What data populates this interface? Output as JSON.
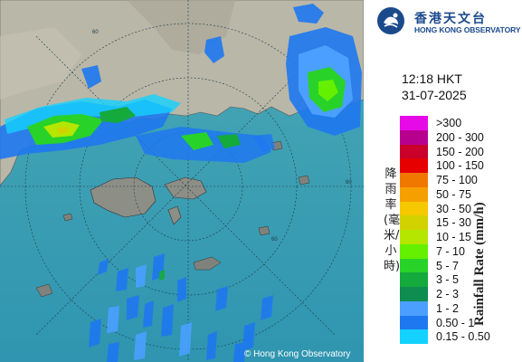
{
  "header": {
    "org_name_zh": "香港天文台",
    "org_name_en": "HONG KONG OBSERVATORY",
    "time": "12:18 HKT",
    "date": "31-07-2025"
  },
  "legend": {
    "title_zh": "降雨率(毫米/小時)",
    "title_en": "Rainfall Rate (mm/h)",
    "items": [
      {
        "label": ">300",
        "color": "#e60ae6"
      },
      {
        "label": "200 - 300",
        "color": "#b8008f"
      },
      {
        "label": "150 - 200",
        "color": "#c8002a"
      },
      {
        "label": "100 - 150",
        "color": "#e60000"
      },
      {
        "label": "75 - 100",
        "color": "#f07800"
      },
      {
        "label": "50 - 75",
        "color": "#f5a000"
      },
      {
        "label": "30 - 50",
        "color": "#f5c800"
      },
      {
        "label": "15 - 30",
        "color": "#d2d200"
      },
      {
        "label": "10 - 15",
        "color": "#b4e600"
      },
      {
        "label": "7 - 10",
        "color": "#64f000"
      },
      {
        "label": "5 - 7",
        "color": "#28d228"
      },
      {
        "label": "3 - 5",
        "color": "#14aa3c"
      },
      {
        "label": "2 - 3",
        "color": "#0f8c50"
      },
      {
        "label": "1 - 2",
        "color": "#4ba0ff"
      },
      {
        "label": "0.50 - 1",
        "color": "#1e78f0"
      },
      {
        "label": "0.15 - 0.50",
        "color": "#14d2ff"
      }
    ]
  },
  "map": {
    "copyright": "© Hong Kong Observatory",
    "range_ring_label": "60",
    "sea_color": "#3a9fb4",
    "land_color": "#b8b5a6"
  }
}
